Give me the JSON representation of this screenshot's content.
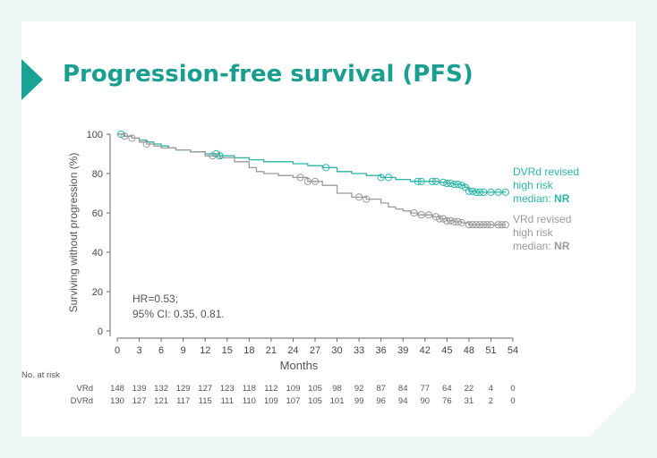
{
  "title": "Progression-free survival (PFS)",
  "colors": {
    "accent": "#19a394",
    "dvrd": "#2bb5a6",
    "vrd": "#9a9a9a",
    "title": "#1a9e8f"
  },
  "chart_data": {
    "type": "line",
    "xlabel": "Months",
    "ylabel": "Surviving without progression (%)",
    "xlim": [
      0,
      54
    ],
    "ylim": [
      0,
      100
    ],
    "x_ticks": [
      "0",
      "3",
      "6",
      "9",
      "12",
      "15",
      "18",
      "21",
      "24",
      "27",
      "30",
      "33",
      "36",
      "39",
      "42",
      "45",
      "48",
      "51",
      "54"
    ],
    "y_ticks": [
      "0",
      "20",
      "40",
      "60",
      "80",
      "100"
    ],
    "series": [
      {
        "name": "DVRd",
        "label_lines": [
          "DVRd revised",
          "high risk"
        ],
        "median_label": "median: ",
        "median_value": "NR",
        "color": "#2bb5a6",
        "x": [
          0,
          1,
          2,
          3,
          4,
          5,
          6,
          7,
          8,
          10,
          12,
          14,
          16,
          18,
          20,
          22,
          24,
          26,
          28,
          30,
          32,
          34,
          36,
          38,
          40,
          42,
          44,
          45,
          46,
          47,
          47.5,
          48,
          49,
          50,
          51,
          52,
          53
        ],
        "y": [
          100,
          99,
          98,
          97,
          96,
          95,
          94,
          93,
          92,
          91,
          90,
          89,
          88,
          87,
          86,
          86,
          85,
          84,
          83,
          81,
          80,
          79,
          78,
          77,
          76,
          76,
          75.5,
          75,
          74.5,
          74,
          73,
          71,
          70.5,
          70.5,
          70.5,
          70.5,
          70.5
        ],
        "censor_x": [
          0.5,
          13.5,
          14,
          28.5,
          36,
          37,
          41,
          41.5,
          43,
          43.5,
          44.5,
          45,
          45.5,
          46,
          46.5,
          47,
          47.5,
          48,
          48.5,
          49,
          49.5,
          50,
          51,
          52,
          53
        ]
      },
      {
        "name": "VRd",
        "label_lines": [
          "VRd revised",
          "high risk"
        ],
        "median_label": "median: ",
        "median_value": "NR",
        "color": "#9a9a9a",
        "x": [
          0,
          1,
          2,
          3,
          4,
          5,
          6,
          8,
          10,
          12,
          14,
          16,
          18,
          19,
          20,
          22,
          24,
          26,
          28,
          30,
          32,
          34,
          36,
          37,
          38,
          39,
          40,
          41,
          42,
          43,
          44,
          45,
          46,
          47,
          48,
          50,
          52,
          53
        ],
        "y": [
          100,
          99,
          98,
          96,
          95,
          94,
          93,
          92,
          91,
          89,
          88,
          86,
          83,
          81,
          80,
          79,
          78,
          76,
          74,
          70,
          68,
          67,
          65,
          63,
          62,
          61,
          60,
          59,
          59,
          58,
          57,
          56,
          55.5,
          55,
          54,
          54,
          54,
          54
        ],
        "censor_x": [
          1,
          2,
          4,
          13,
          25,
          26,
          27,
          33,
          34,
          40.5,
          41.5,
          42.5,
          43.5,
          44,
          44.5,
          45,
          45.5,
          46,
          46.5,
          47,
          48,
          48.5,
          49,
          49.5,
          50,
          50.5,
          51,
          52,
          52.5,
          53
        ]
      }
    ],
    "annotation": [
      "HR=0.53;",
      "95% CI: 0.35, 0.81."
    ],
    "risk_table": {
      "header": "No. at risk",
      "rows": [
        {
          "label": "VRd",
          "values": [
            "148",
            "139",
            "132",
            "129",
            "127",
            "123",
            "118",
            "112",
            "109",
            "105",
            "98",
            "92",
            "87",
            "84",
            "77",
            "64",
            "22",
            "4",
            "0"
          ]
        },
        {
          "label": "DVRd",
          "values": [
            "130",
            "127",
            "121",
            "117",
            "115",
            "111",
            "110",
            "109",
            "107",
            "105",
            "101",
            "99",
            "96",
            "94",
            "90",
            "76",
            "31",
            "2",
            "0"
          ]
        }
      ]
    }
  }
}
